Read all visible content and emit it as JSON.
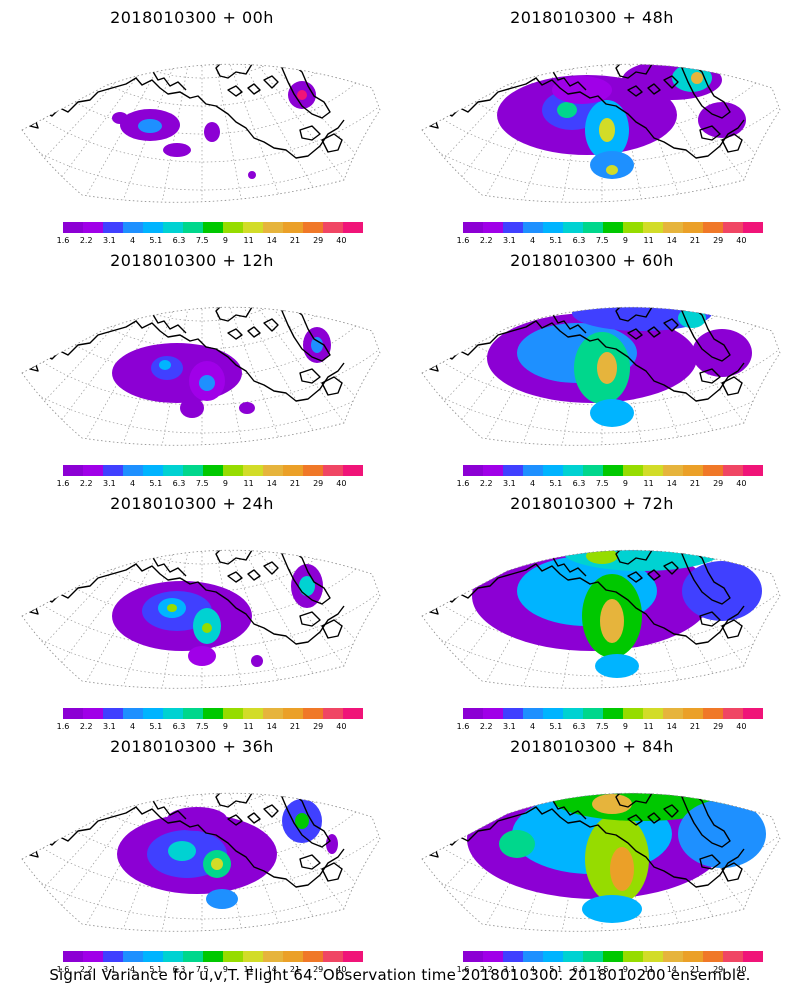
{
  "panels": [
    {
      "title": "2018010300 + 00h",
      "lead": 0
    },
    {
      "title": "2018010300 + 48h",
      "lead": 48
    },
    {
      "title": "2018010300 + 12h",
      "lead": 12
    },
    {
      "title": "2018010300 + 60h",
      "lead": 60
    },
    {
      "title": "2018010300 + 24h",
      "lead": 24
    },
    {
      "title": "2018010300 + 72h",
      "lead": 72
    },
    {
      "title": "2018010300 + 36h",
      "lead": 36
    },
    {
      "title": "2018010300 + 84h",
      "lead": 84
    }
  ],
  "colorbar": {
    "colors": [
      "#8c00d4",
      "#a000e8",
      "#4040ff",
      "#1e90ff",
      "#00b4ff",
      "#00d2d2",
      "#00d78c",
      "#00c800",
      "#96dc00",
      "#d2dc28",
      "#e6b43c",
      "#eba028",
      "#f07828",
      "#f04664",
      "#f01478"
    ],
    "labels": [
      "1.6",
      "2.2",
      "3.1",
      "4",
      "5.1",
      "6.3",
      "7.5",
      "9",
      "11",
      "14",
      "21",
      "29",
      "40"
    ]
  },
  "footer": "Signal Variance for u,v,T. Flight 64. Observation time 2018010300. 2018010200 ensemble."
}
